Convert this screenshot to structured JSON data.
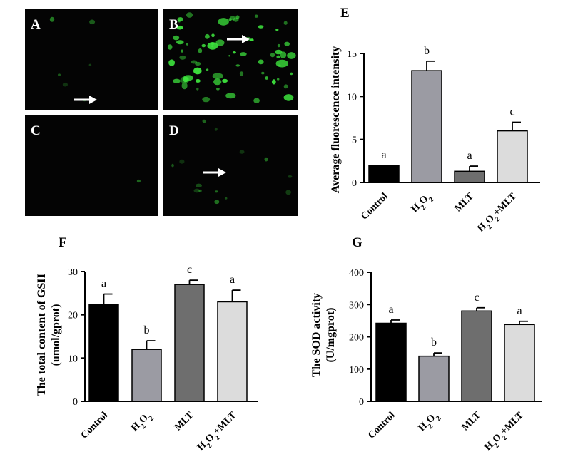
{
  "micrographs": {
    "panels": [
      {
        "letter": "A",
        "arrow": true
      },
      {
        "letter": "B",
        "arrow": true
      },
      {
        "letter": "C",
        "arrow": false
      },
      {
        "letter": "D",
        "arrow": true
      }
    ],
    "cell_color": "#3de23d",
    "background_color": "#040404"
  },
  "chart_data": [
    {
      "id": "E",
      "panel_label": "E",
      "type": "bar",
      "categories": [
        "Control",
        "H2O2",
        "MLT",
        "H2O2+MLT"
      ],
      "values": [
        2.0,
        13.0,
        1.3,
        6.0
      ],
      "errors": [
        0.0,
        1.1,
        0.6,
        1.0
      ],
      "significance": [
        "a",
        "b",
        "a",
        "c"
      ],
      "ylabel": "Average fluorescence intensity",
      "ylabel_lines": [
        "Average fluorescence intensity"
      ],
      "ylim": [
        0,
        15
      ],
      "yticks": [
        0,
        5,
        10,
        15
      ],
      "colors": [
        "#000000",
        "#9b9ba3",
        "#6e6e6e",
        "#dcdcdc"
      ],
      "grid": false
    },
    {
      "id": "F",
      "panel_label": "F",
      "type": "bar",
      "categories": [
        "Control",
        "H2O2",
        "MLT",
        "H2O2+MLT"
      ],
      "values": [
        22.3,
        12.0,
        27.0,
        23.0
      ],
      "errors": [
        2.5,
        2.0,
        1.0,
        2.7
      ],
      "significance": [
        "a",
        "b",
        "c",
        "a"
      ],
      "ylabel": "The total content of GSH (umol/gprot)",
      "ylabel_lines": [
        "The total content of GSH",
        "(umol/gprot)"
      ],
      "ylim": [
        0,
        30
      ],
      "yticks": [
        0,
        10,
        20,
        30
      ],
      "colors": [
        "#000000",
        "#9b9ba3",
        "#6e6e6e",
        "#dcdcdc"
      ],
      "grid": false
    },
    {
      "id": "G",
      "panel_label": "G",
      "type": "bar",
      "categories": [
        "Control",
        "H2O2",
        "MLT",
        "H2O2+MLT"
      ],
      "values": [
        242,
        140,
        280,
        238
      ],
      "errors": [
        10,
        10,
        10,
        10
      ],
      "significance": [
        "a",
        "b",
        "c",
        "a"
      ],
      "ylabel": "The SOD activity (U/mgprot)",
      "ylabel_lines": [
        "The SOD activity",
        "(U/mgprot)"
      ],
      "ylim": [
        0,
        400
      ],
      "yticks": [
        0,
        100,
        200,
        300,
        400
      ],
      "colors": [
        "#000000",
        "#9b9ba3",
        "#6e6e6e",
        "#dcdcdc"
      ],
      "grid": false
    }
  ]
}
